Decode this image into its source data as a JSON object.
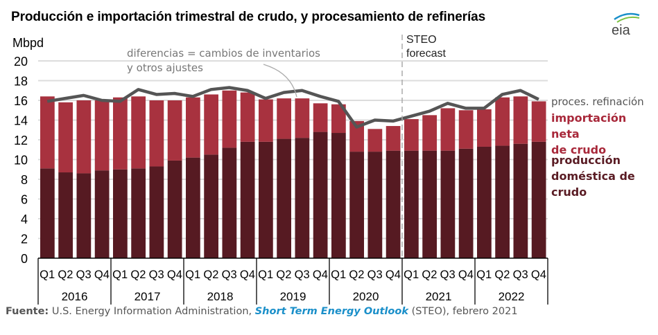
{
  "chart_data": {
    "type": "bar",
    "title": "Producción e importación trimestral de crudo, y procesamiento de refinerías",
    "ylabel": "Mbpd",
    "ylim": [
      0,
      20
    ],
    "yticks": [
      0,
      2,
      4,
      6,
      8,
      10,
      12,
      14,
      16,
      18,
      20
    ],
    "grid": true,
    "legend_placement": "right",
    "quarters": [
      "Q1",
      "Q2",
      "Q3",
      "Q4"
    ],
    "years": [
      "2016",
      "2017",
      "2018",
      "2019",
      "2020",
      "2021",
      "2022"
    ],
    "series": [
      {
        "name": "producción doméstica de crudo",
        "kind": "stacked-bar",
        "color": "#561a22",
        "values": [
          9.1,
          8.7,
          8.6,
          8.9,
          9.0,
          9.1,
          9.3,
          9.9,
          10.2,
          10.5,
          11.2,
          11.8,
          11.8,
          12.1,
          12.2,
          12.8,
          12.7,
          10.8,
          10.8,
          10.9,
          10.9,
          10.9,
          10.9,
          11.1,
          11.3,
          11.4,
          11.6,
          11.8
        ]
      },
      {
        "name": "importación neta de crudo",
        "kind": "stacked-bar",
        "color": "#a8323f",
        "values": [
          7.3,
          7.1,
          7.4,
          7.1,
          7.3,
          7.3,
          6.7,
          6.1,
          6.1,
          6.1,
          5.8,
          5.0,
          4.3,
          4.1,
          4.0,
          2.9,
          2.9,
          3.1,
          2.3,
          2.5,
          3.2,
          3.6,
          4.3,
          3.9,
          3.8,
          4.9,
          4.8,
          4.1
        ]
      },
      {
        "name": "proces. refinación",
        "kind": "line",
        "color": "#555555",
        "values": [
          15.9,
          16.2,
          16.5,
          16.0,
          15.9,
          17.1,
          16.6,
          16.7,
          16.4,
          17.1,
          17.3,
          17.0,
          16.2,
          16.8,
          17.0,
          16.4,
          15.9,
          13.3,
          14.0,
          13.9,
          14.4,
          14.9,
          15.7,
          15.2,
          15.2,
          16.6,
          17.0,
          16.1
        ]
      }
    ],
    "annotations": {
      "differences": [
        "diferencias = cambios de inventarios",
        "y otros ajustes"
      ],
      "forecast": [
        "STEO",
        "forecast"
      ],
      "forecast_starts": "2021 Q1"
    }
  },
  "legend": {
    "refining": "proces. refinación",
    "imports": [
      "importación neta",
      "de crudo"
    ],
    "production": [
      "producción",
      "doméstica de",
      "crudo"
    ]
  },
  "source": {
    "label": "Fuente:",
    "text1": " U.S. Energy Information Administration, ",
    "link": "Short Term Energy Outlook",
    "text2": " (STEO), febrero 2021"
  },
  "logo": "eia"
}
